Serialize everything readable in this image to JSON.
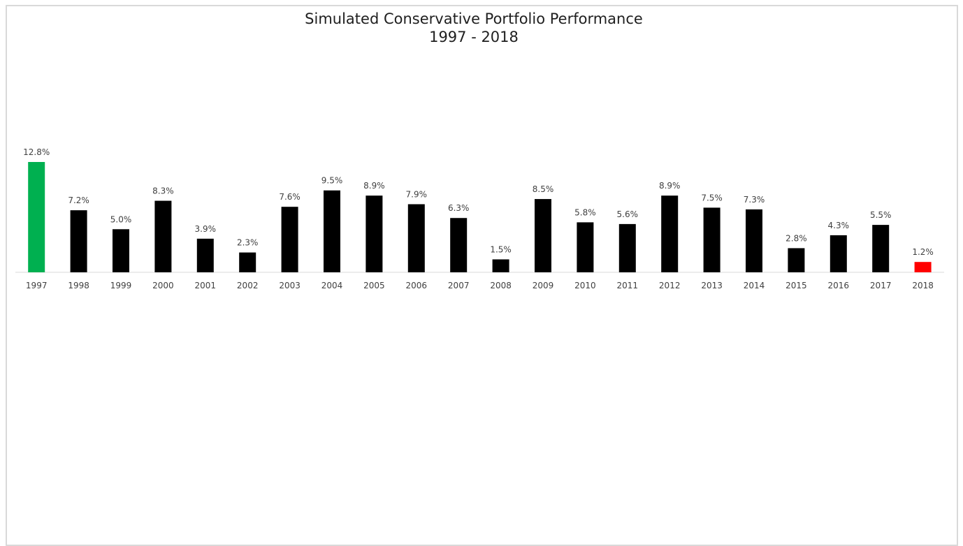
{
  "chart_data": {
    "type": "bar",
    "title": "Simulated Conservative Portfolio Performance",
    "subtitle": "1997 - 2018",
    "xlabel": "",
    "ylabel": "",
    "ylim": [
      0,
      12.8
    ],
    "grid": false,
    "legend": "none",
    "categories": [
      "1997",
      "1998",
      "1999",
      "2000",
      "2001",
      "2002",
      "2003",
      "2004",
      "2005",
      "2006",
      "2007",
      "2008",
      "2009",
      "2010",
      "2011",
      "2012",
      "2013",
      "2014",
      "2015",
      "2016",
      "2017",
      "2018"
    ],
    "values": [
      12.8,
      7.2,
      5.0,
      8.3,
      3.9,
      2.3,
      7.6,
      9.5,
      8.9,
      7.9,
      6.3,
      1.5,
      8.5,
      5.8,
      5.6,
      8.9,
      7.5,
      7.3,
      2.8,
      4.3,
      5.5,
      1.2
    ],
    "data_labels": [
      "12.8%",
      "7.2%",
      "5.0%",
      "8.3%",
      "3.9%",
      "2.3%",
      "7.6%",
      "9.5%",
      "8.9%",
      "7.9%",
      "6.3%",
      "1.5%",
      "8.5%",
      "5.8%",
      "5.6%",
      "8.9%",
      "7.5%",
      "7.3%",
      "2.8%",
      "4.3%",
      "5.5%",
      "1.2%"
    ],
    "colors": {
      "default": "#000000",
      "highest": "#00b050",
      "latest": "#ff0000",
      "axis": "#d9d9d9"
    },
    "highlight": {
      "1997": "highest",
      "2018": "latest"
    }
  }
}
